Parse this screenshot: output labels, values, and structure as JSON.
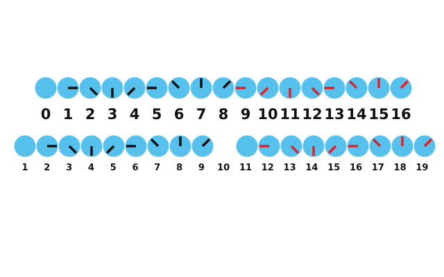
{
  "colors": {
    "circle": "#56c1ec",
    "black_tick": "#111111",
    "red_tick": "#e0202a",
    "label": "#111111"
  },
  "strip_a": {
    "labels": [
      "0",
      "1",
      "2",
      "3",
      "4",
      "5",
      "6",
      "7",
      "8",
      "9",
      "10",
      "11",
      "12",
      "13",
      "14",
      "15",
      "16"
    ],
    "circles": [
      {
        "tick": "none"
      },
      {
        "tick": "right",
        "color": "black"
      },
      {
        "tick": "down-right",
        "color": "black"
      },
      {
        "tick": "down",
        "color": "black"
      },
      {
        "tick": "down-left",
        "color": "black"
      },
      {
        "tick": "left",
        "color": "black"
      },
      {
        "tick": "up-left",
        "color": "black"
      },
      {
        "tick": "up",
        "color": "black"
      },
      {
        "tick": "up-right",
        "color": "black"
      },
      {
        "tick": "left",
        "color": "red"
      },
      {
        "tick": "down-left",
        "color": "red"
      },
      {
        "tick": "down",
        "color": "red"
      },
      {
        "tick": "down-right",
        "color": "red"
      },
      {
        "tick": "left",
        "color": "red"
      },
      {
        "tick": "up-left",
        "color": "red"
      },
      {
        "tick": "up",
        "color": "red"
      },
      {
        "tick": "up-right",
        "color": "red"
      }
    ]
  },
  "strip_b": {
    "labels": [
      "1",
      "2",
      "3",
      "4",
      "5",
      "6",
      "7",
      "8",
      "9",
      "10",
      "11",
      "12",
      "13",
      "14",
      "15",
      "16",
      "17",
      "18",
      "19"
    ],
    "circles": [
      {
        "tick": "none"
      },
      {
        "tick": "right",
        "color": "black"
      },
      {
        "tick": "down-right",
        "color": "black"
      },
      {
        "tick": "down",
        "color": "black"
      },
      {
        "tick": "down-left",
        "color": "black"
      },
      {
        "tick": "left",
        "color": "black"
      },
      {
        "tick": "up-left",
        "color": "black"
      },
      {
        "tick": "up",
        "color": "black"
      },
      {
        "tick": "up-right",
        "color": "black"
      },
      {
        "tick": "blank"
      },
      {
        "tick": "none"
      },
      {
        "tick": "left",
        "color": "red"
      },
      {
        "tick": "down-right",
        "color": "red"
      },
      {
        "tick": "down",
        "color": "red"
      },
      {
        "tick": "down-left",
        "color": "red"
      },
      {
        "tick": "left",
        "color": "red"
      },
      {
        "tick": "up-left",
        "color": "red"
      },
      {
        "tick": "up",
        "color": "red"
      },
      {
        "tick": "up-right",
        "color": "red"
      }
    ]
  }
}
